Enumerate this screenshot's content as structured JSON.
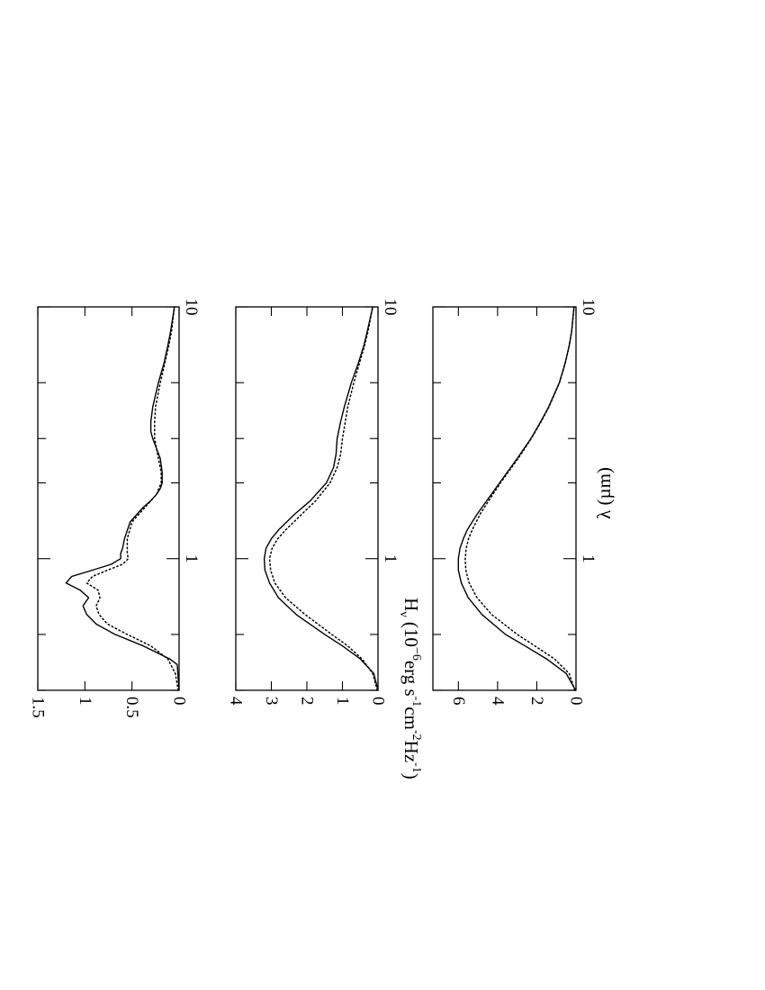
{
  "figure": {
    "orientation": "rotated 90 degrees clockwise",
    "ylabel_parts": {
      "base": "H",
      "sub": "ν",
      "open": " (10",
      "exp1": "−6",
      "unit1": "erg s",
      "exp2": "-1",
      "unit2": "cm",
      "exp3": "-2",
      "unit3": "Hz",
      "exp4": "-1",
      "close": ")"
    },
    "xlabel": "λ (µm)",
    "line_color": "#000000",
    "series_styles": {
      "solid": "solid",
      "dotted": "dotted"
    }
  },
  "chart_data": [
    {
      "type": "line",
      "xscale": "log",
      "xlim": [
        0.3,
        10
      ],
      "ylim": [
        0,
        1.5
      ],
      "xticks": [
        1,
        10
      ],
      "xtick_labels": [
        "1",
        "10"
      ],
      "yticks": [
        0,
        0.5,
        1,
        1.5
      ],
      "ytick_labels": [
        "0",
        "0.5",
        "1",
        "1.5"
      ],
      "series": [
        {
          "style": "solid",
          "x": [
            0.3,
            0.38,
            0.4,
            0.45,
            0.5,
            0.55,
            0.6,
            0.65,
            0.7,
            0.75,
            0.8,
            0.85,
            0.9,
            0.95,
            1.0,
            1.05,
            1.1,
            1.2,
            1.4,
            1.6,
            1.7,
            1.8,
            1.9,
            2.0,
            2.2,
            2.5,
            3.0,
            3.2,
            3.5,
            4.0,
            5.0,
            6.0,
            7.0,
            8.0,
            10.0
          ],
          "y": [
            0.0,
            0.02,
            0.1,
            0.38,
            0.68,
            0.88,
            0.98,
            1.02,
            0.96,
            1.05,
            1.2,
            1.14,
            0.92,
            0.72,
            0.62,
            0.62,
            0.6,
            0.58,
            0.52,
            0.38,
            0.3,
            0.24,
            0.2,
            0.18,
            0.18,
            0.2,
            0.28,
            0.3,
            0.3,
            0.28,
            0.22,
            0.16,
            0.12,
            0.09,
            0.05
          ]
        },
        {
          "style": "dotted",
          "x": [
            0.3,
            0.35,
            0.4,
            0.45,
            0.5,
            0.55,
            0.6,
            0.65,
            0.7,
            0.75,
            0.8,
            0.85,
            0.9,
            0.95,
            1.0,
            1.05,
            1.1,
            1.2,
            1.4,
            1.6,
            1.8,
            2.0,
            2.2,
            2.5,
            3.0,
            3.5,
            4.0,
            5.0,
            6.0,
            7.0,
            8.0,
            10.0
          ],
          "y": [
            0.01,
            0.04,
            0.12,
            0.3,
            0.55,
            0.76,
            0.85,
            0.88,
            0.84,
            0.86,
            0.98,
            0.92,
            0.76,
            0.6,
            0.54,
            0.55,
            0.55,
            0.55,
            0.5,
            0.36,
            0.24,
            0.19,
            0.19,
            0.22,
            0.26,
            0.26,
            0.25,
            0.2,
            0.15,
            0.11,
            0.08,
            0.05
          ]
        }
      ]
    },
    {
      "type": "line",
      "xscale": "log",
      "xlim": [
        0.3,
        10
      ],
      "ylim": [
        0,
        4
      ],
      "xticks": [
        1,
        10
      ],
      "xtick_labels": [
        "1",
        "10"
      ],
      "yticks": [
        0,
        1,
        2,
        3,
        4
      ],
      "ytick_labels": [
        "0",
        "1",
        "2",
        "3",
        "4"
      ],
      "series": [
        {
          "style": "solid",
          "x": [
            0.3,
            0.35,
            0.4,
            0.45,
            0.5,
            0.6,
            0.7,
            0.8,
            0.9,
            1.0,
            1.1,
            1.2,
            1.3,
            1.5,
            1.7,
            2.0,
            2.3,
            2.6,
            3.0,
            3.5,
            4.0,
            5.0,
            6.0,
            7.0,
            8.0,
            10.0
          ],
          "y": [
            0.0,
            0.12,
            0.5,
            1.0,
            1.5,
            2.3,
            2.8,
            3.05,
            3.18,
            3.2,
            3.15,
            3.0,
            2.8,
            2.35,
            1.9,
            1.45,
            1.25,
            1.18,
            1.15,
            1.05,
            0.95,
            0.75,
            0.55,
            0.4,
            0.3,
            0.15
          ]
        },
        {
          "style": "dotted",
          "x": [
            0.3,
            0.35,
            0.4,
            0.45,
            0.5,
            0.6,
            0.7,
            0.8,
            0.9,
            1.0,
            1.1,
            1.2,
            1.3,
            1.5,
            1.7,
            2.0,
            2.3,
            2.6,
            3.0,
            3.5,
            4.0,
            5.0,
            6.0,
            7.0,
            8.0,
            10.0
          ],
          "y": [
            0.02,
            0.15,
            0.45,
            0.85,
            1.3,
            2.05,
            2.6,
            2.9,
            3.02,
            3.05,
            2.98,
            2.82,
            2.6,
            2.15,
            1.75,
            1.35,
            1.15,
            1.05,
            1.0,
            0.92,
            0.85,
            0.68,
            0.52,
            0.38,
            0.28,
            0.15
          ]
        }
      ]
    },
    {
      "type": "line",
      "xscale": "log",
      "xlim": [
        0.3,
        10
      ],
      "ylim": [
        0,
        7.3
      ],
      "xticks": [
        1,
        10
      ],
      "xtick_labels": [
        "1",
        "10"
      ],
      "yticks": [
        0,
        2,
        4,
        6
      ],
      "ytick_labels": [
        "0",
        "2",
        "4",
        "6"
      ],
      "series": [
        {
          "style": "solid",
          "x": [
            0.3,
            0.35,
            0.4,
            0.45,
            0.5,
            0.6,
            0.7,
            0.8,
            0.9,
            1.0,
            1.1,
            1.2,
            1.3,
            1.5,
            1.7,
            2.0,
            2.5,
            3.0,
            3.5,
            4.0,
            5.0,
            6.0,
            7.0,
            8.0,
            10.0
          ],
          "y": [
            0.02,
            0.5,
            1.5,
            2.6,
            3.6,
            4.8,
            5.5,
            5.85,
            6.0,
            6.0,
            5.92,
            5.75,
            5.55,
            5.05,
            4.55,
            3.9,
            3.0,
            2.3,
            1.8,
            1.4,
            0.85,
            0.55,
            0.35,
            0.22,
            0.1
          ]
        },
        {
          "style": "dotted",
          "x": [
            0.3,
            0.35,
            0.4,
            0.45,
            0.5,
            0.6,
            0.7,
            0.8,
            0.9,
            1.0,
            1.1,
            1.2,
            1.3,
            1.5,
            1.7,
            2.0,
            2.5,
            3.0,
            3.5,
            4.0,
            5.0,
            6.0,
            7.0,
            8.0,
            10.0
          ],
          "y": [
            0.06,
            0.35,
            1.1,
            2.1,
            3.0,
            4.3,
            5.05,
            5.45,
            5.62,
            5.65,
            5.6,
            5.48,
            5.3,
            4.9,
            4.45,
            3.85,
            2.95,
            2.28,
            1.78,
            1.38,
            0.84,
            0.54,
            0.35,
            0.22,
            0.1
          ]
        }
      ]
    }
  ]
}
